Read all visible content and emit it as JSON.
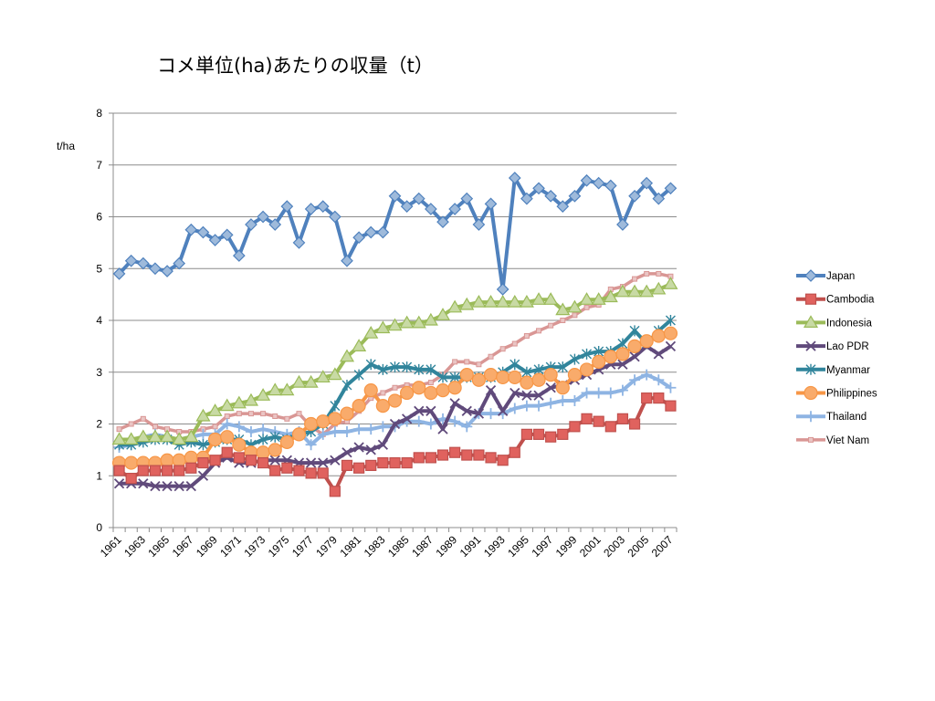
{
  "chart_data": {
    "type": "line",
    "title": "コメ単位(ha)あたりの収量（t）",
    "ylabel": "t/ha",
    "xlabel": "",
    "ylim": [
      0,
      8
    ],
    "yticks": [
      "0",
      "1",
      "2",
      "3",
      "4",
      "5",
      "6",
      "7",
      "8"
    ],
    "x": [
      1961,
      1962,
      1963,
      1964,
      1965,
      1966,
      1967,
      1968,
      1969,
      1970,
      1971,
      1972,
      1973,
      1974,
      1975,
      1976,
      1977,
      1978,
      1979,
      1980,
      1981,
      1982,
      1983,
      1984,
      1985,
      1986,
      1987,
      1988,
      1989,
      1990,
      1991,
      1992,
      1993,
      1994,
      1995,
      1996,
      1997,
      1998,
      1999,
      2000,
      2001,
      2002,
      2003,
      2004,
      2005,
      2006,
      2007
    ],
    "xtick_labels": [
      "1961",
      "1963",
      "1965",
      "1967",
      "1969",
      "1971",
      "1973",
      "1975",
      "1977",
      "1979",
      "1981",
      "1983",
      "1985",
      "1987",
      "1989",
      "1991",
      "1993",
      "1995",
      "1997",
      "1999",
      "2001",
      "2003",
      "2005",
      "2007"
    ],
    "grid": "horizontal",
    "legend_position": "right",
    "series": [
      {
        "name": "Viet Nam",
        "color": "#d99694",
        "marker": "square-small",
        "values": [
          1.9,
          2.0,
          2.1,
          1.95,
          1.9,
          1.85,
          1.85,
          1.9,
          1.95,
          2.15,
          2.2,
          2.2,
          2.2,
          2.15,
          2.1,
          2.2,
          1.95,
          1.8,
          2.0,
          2.05,
          2.25,
          2.5,
          2.6,
          2.7,
          2.75,
          2.75,
          2.8,
          2.95,
          3.2,
          3.2,
          3.15,
          3.3,
          3.45,
          3.55,
          3.7,
          3.8,
          3.9,
          4.0,
          4.1,
          4.25,
          4.3,
          4.6,
          4.65,
          4.8,
          4.9,
          4.9,
          4.85
        ]
      },
      {
        "name": "Thailand",
        "color": "#8eb4e3",
        "marker": "plus",
        "values": [
          1.55,
          1.6,
          1.75,
          1.8,
          1.75,
          1.7,
          1.75,
          1.8,
          1.8,
          2.0,
          1.95,
          1.85,
          1.9,
          1.85,
          1.8,
          1.85,
          1.6,
          1.8,
          1.85,
          1.85,
          1.9,
          1.9,
          1.95,
          1.95,
          2.05,
          2.05,
          2.0,
          2.1,
          2.05,
          1.95,
          2.2,
          2.2,
          2.2,
          2.3,
          2.35,
          2.35,
          2.4,
          2.45,
          2.45,
          2.6,
          2.6,
          2.6,
          2.65,
          2.85,
          2.95,
          2.85,
          2.7
        ]
      },
      {
        "name": "Myanmar",
        "color": "#31859c",
        "marker": "star",
        "values": [
          1.6,
          1.6,
          1.65,
          1.7,
          1.7,
          1.6,
          1.65,
          1.6,
          1.65,
          1.7,
          1.7,
          1.6,
          1.7,
          1.75,
          1.7,
          1.8,
          1.85,
          2.0,
          2.35,
          2.75,
          2.95,
          3.15,
          3.05,
          3.1,
          3.1,
          3.05,
          3.05,
          2.9,
          2.9,
          2.9,
          2.9,
          2.9,
          3.0,
          3.15,
          3.0,
          3.05,
          3.1,
          3.1,
          3.25,
          3.35,
          3.4,
          3.4,
          3.55,
          3.8,
          3.55,
          3.8,
          4.0
        ]
      },
      {
        "name": "Lao PDR",
        "color": "#604a7b",
        "marker": "x",
        "values": [
          0.85,
          0.85,
          0.85,
          0.8,
          0.8,
          0.8,
          0.8,
          1.0,
          1.25,
          1.35,
          1.25,
          1.25,
          1.3,
          1.3,
          1.3,
          1.25,
          1.25,
          1.25,
          1.3,
          1.45,
          1.55,
          1.5,
          1.6,
          2.0,
          2.1,
          2.25,
          2.25,
          1.9,
          2.4,
          2.25,
          2.2,
          2.65,
          2.25,
          2.6,
          2.55,
          2.55,
          2.7,
          2.75,
          2.85,
          2.95,
          3.05,
          3.15,
          3.15,
          3.3,
          3.5,
          3.35,
          3.5
        ]
      },
      {
        "name": "Philippines",
        "color": "#f79646",
        "marker": "circle",
        "values": [
          1.25,
          1.25,
          1.25,
          1.25,
          1.3,
          1.3,
          1.35,
          1.35,
          1.7,
          1.75,
          1.6,
          1.45,
          1.45,
          1.5,
          1.65,
          1.8,
          2.0,
          2.05,
          2.1,
          2.2,
          2.35,
          2.65,
          2.35,
          2.45,
          2.6,
          2.7,
          2.6,
          2.65,
          2.7,
          2.95,
          2.85,
          2.95,
          2.9,
          2.9,
          2.8,
          2.85,
          2.95,
          2.7,
          2.95,
          3.05,
          3.2,
          3.3,
          3.35,
          3.5,
          3.6,
          3.7,
          3.75
        ]
      },
      {
        "name": "Indonesia",
        "color": "#9bbb59",
        "marker": "triangle",
        "values": [
          1.7,
          1.7,
          1.75,
          1.75,
          1.75,
          1.7,
          1.75,
          2.15,
          2.25,
          2.35,
          2.4,
          2.45,
          2.55,
          2.65,
          2.65,
          2.8,
          2.8,
          2.9,
          2.95,
          3.3,
          3.5,
          3.75,
          3.85,
          3.9,
          3.95,
          3.95,
          4.0,
          4.1,
          4.25,
          4.3,
          4.35,
          4.35,
          4.35,
          4.35,
          4.35,
          4.4,
          4.4,
          4.2,
          4.25,
          4.4,
          4.4,
          4.45,
          4.55,
          4.55,
          4.55,
          4.6,
          4.7
        ]
      },
      {
        "name": "Cambodia",
        "color": "#c0504d",
        "marker": "square",
        "values": [
          1.1,
          0.95,
          1.1,
          1.1,
          1.1,
          1.1,
          1.15,
          1.25,
          1.3,
          1.45,
          1.35,
          1.3,
          1.25,
          1.1,
          1.15,
          1.1,
          1.05,
          1.05,
          0.7,
          1.2,
          1.15,
          1.2,
          1.25,
          1.25,
          1.25,
          1.35,
          1.35,
          1.4,
          1.45,
          1.4,
          1.4,
          1.35,
          1.3,
          1.45,
          1.8,
          1.8,
          1.75,
          1.8,
          1.95,
          2.1,
          2.05,
          1.95,
          2.1,
          2.0,
          2.5,
          2.5,
          2.35
        ]
      },
      {
        "name": "Japan",
        "color": "#4f81bd",
        "marker": "diamond",
        "values": [
          4.9,
          5.15,
          5.1,
          5.0,
          4.95,
          5.1,
          5.75,
          5.7,
          5.55,
          5.65,
          5.25,
          5.85,
          6.0,
          5.85,
          6.2,
          5.5,
          6.15,
          6.2,
          6.0,
          5.15,
          5.6,
          5.7,
          5.7,
          6.4,
          6.2,
          6.35,
          6.15,
          5.9,
          6.15,
          6.35,
          5.85,
          6.25,
          4.6,
          6.75,
          6.35,
          6.55,
          6.4,
          6.2,
          6.4,
          6.7,
          6.65,
          6.6,
          5.85,
          6.4,
          6.65,
          6.35,
          6.55
        ]
      }
    ],
    "legend_order": [
      "Japan",
      "Cambodia",
      "Indonesia",
      "Lao PDR",
      "Myanmar",
      "Philippines",
      "Thailand",
      "Viet Nam"
    ]
  }
}
